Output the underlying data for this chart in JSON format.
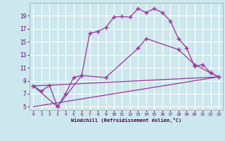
{
  "xlabel": "Windchill (Refroidissement éolien,°C)",
  "bg_color": "#cce8ee",
  "grid_color": "#ffffff",
  "line_color": "#993399",
  "xlim": [
    -0.5,
    23.5
  ],
  "ylim": [
    4.5,
    21.0
  ],
  "yticks": [
    5,
    7,
    9,
    11,
    13,
    15,
    17,
    19
  ],
  "xticks": [
    0,
    1,
    2,
    3,
    4,
    5,
    6,
    7,
    8,
    9,
    10,
    11,
    12,
    13,
    14,
    15,
    16,
    17,
    18,
    19,
    20,
    21,
    22,
    23
  ],
  "line1_x": [
    0,
    1,
    2,
    3,
    4,
    5,
    6,
    7,
    8,
    9,
    10,
    11,
    12,
    13,
    14,
    15,
    16,
    17,
    18,
    19,
    20,
    21,
    22,
    23
  ],
  "line1_y": [
    8.2,
    7.4,
    8.3,
    5.0,
    7.0,
    9.5,
    9.8,
    16.3,
    16.6,
    17.2,
    18.8,
    18.9,
    18.8,
    20.1,
    19.5,
    20.1,
    19.5,
    18.2,
    15.5,
    14.1,
    11.2,
    11.5,
    10.2,
    9.6
  ],
  "line2_x": [
    0,
    3,
    6,
    9,
    13,
    14,
    18,
    20,
    22,
    23
  ],
  "line2_y": [
    8.2,
    5.0,
    9.8,
    9.5,
    14.0,
    15.5,
    13.8,
    11.5,
    10.2,
    9.6
  ],
  "line3_x": [
    0,
    23
  ],
  "line3_y": [
    8.2,
    9.6
  ],
  "line4_x": [
    0,
    23
  ],
  "line4_y": [
    5.0,
    9.6
  ]
}
